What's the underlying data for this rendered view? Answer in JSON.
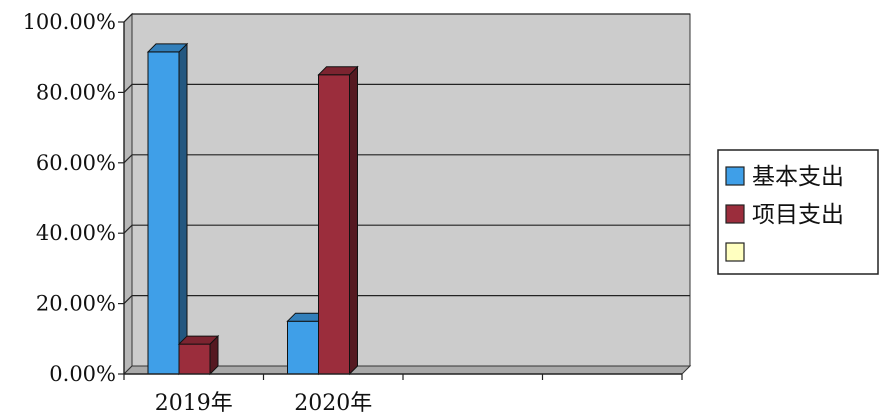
{
  "chart_data": {
    "type": "bar",
    "title": "",
    "xlabel": "",
    "ylabel": "",
    "categories": [
      "2019年",
      "2020年",
      "",
      ""
    ],
    "series": [
      {
        "name": "基本支出",
        "values": [
          91.5,
          15.0,
          null,
          null
        ],
        "color": "#3f9fe8"
      },
      {
        "name": "项目支出",
        "values": [
          8.5,
          85.0,
          null,
          null
        ],
        "color": "#9b2d3c"
      },
      {
        "name": "",
        "values": [
          null,
          null,
          null,
          null
        ],
        "color": "#ffffc0"
      }
    ],
    "yticks": [
      "0.00%",
      "20.00%",
      "40.00%",
      "60.00%",
      "80.00%",
      "100.00%"
    ],
    "ylim": [
      0,
      100
    ],
    "grid": true,
    "legend": "right",
    "plot_background": "#cccccc",
    "three_d": true
  }
}
